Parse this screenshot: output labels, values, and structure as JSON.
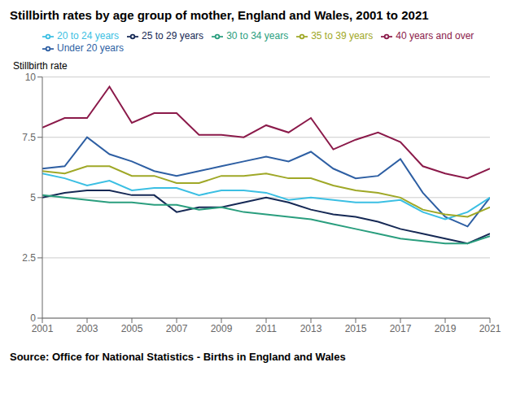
{
  "chart_data": {
    "type": "line",
    "title": "Stillbirth rates by age group of mother, England and Wales, 2001 to 2021",
    "ylabel": "Stillbirth rate",
    "annotations": [
      "Source: Office for National Statistics - Births in England and Wales"
    ],
    "x": [
      2001,
      2002,
      2003,
      2004,
      2005,
      2006,
      2007,
      2008,
      2009,
      2010,
      2011,
      2012,
      2013,
      2014,
      2015,
      2016,
      2017,
      2018,
      2019,
      2020,
      2021
    ],
    "series": [
      {
        "name": "Under 20 years",
        "color": "#2E5FA3",
        "values": [
          6.2,
          6.3,
          7.5,
          6.8,
          6.5,
          6.1,
          5.9,
          6.1,
          6.3,
          6.5,
          6.7,
          6.5,
          6.9,
          6.2,
          5.8,
          5.9,
          6.6,
          5.2,
          4.2,
          3.8,
          5.0
        ]
      },
      {
        "name": "20 to 24 years",
        "color": "#3BBFE3",
        "values": [
          6.0,
          5.8,
          5.5,
          5.7,
          5.3,
          5.4,
          5.4,
          5.1,
          5.3,
          5.3,
          5.2,
          4.9,
          5.0,
          4.9,
          4.8,
          4.8,
          4.9,
          4.4,
          4.1,
          4.4,
          5.0
        ]
      },
      {
        "name": "25 to 29 years",
        "color": "#162955",
        "values": [
          5.0,
          5.2,
          5.3,
          5.3,
          5.1,
          5.1,
          4.4,
          4.6,
          4.6,
          4.8,
          5.0,
          4.8,
          4.5,
          4.3,
          4.2,
          4.0,
          3.7,
          3.5,
          3.3,
          3.1,
          3.5
        ]
      },
      {
        "name": "30 to 34 years",
        "color": "#2A9E7E",
        "values": [
          5.1,
          5.0,
          4.9,
          4.8,
          4.8,
          4.7,
          4.7,
          4.5,
          4.6,
          4.4,
          4.3,
          4.2,
          4.1,
          3.9,
          3.7,
          3.5,
          3.3,
          3.2,
          3.1,
          3.1,
          3.4
        ]
      },
      {
        "name": "35 to 39 years",
        "color": "#9FA827",
        "values": [
          6.1,
          6.0,
          6.3,
          6.3,
          5.9,
          5.9,
          5.6,
          5.6,
          5.9,
          5.9,
          6.0,
          5.8,
          5.8,
          5.5,
          5.3,
          5.2,
          5.0,
          4.5,
          4.3,
          4.2,
          4.6
        ]
      },
      {
        "name": "40 years and over",
        "color": "#8B1A4A",
        "values": [
          7.9,
          8.3,
          8.3,
          9.6,
          8.1,
          8.5,
          8.5,
          7.6,
          7.6,
          7.5,
          8.0,
          7.7,
          8.3,
          7.0,
          7.4,
          7.7,
          7.3,
          6.3,
          6.0,
          5.8,
          6.2
        ]
      }
    ],
    "xlim": [
      2001,
      2021
    ],
    "xticks": [
      2001,
      2003,
      2005,
      2007,
      2009,
      2011,
      2013,
      2015,
      2017,
      2019,
      2021
    ],
    "ylim": [
      0,
      10
    ],
    "yticks": [
      0,
      2.5,
      5,
      7.5,
      10
    ],
    "grid": true,
    "legend": "top"
  }
}
